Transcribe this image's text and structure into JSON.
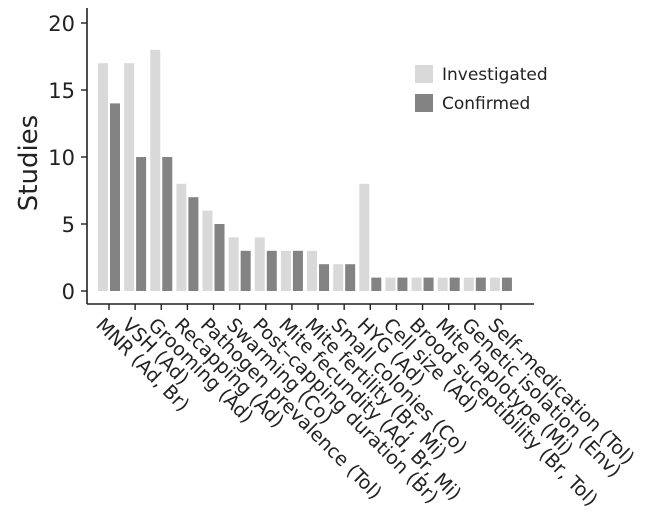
{
  "chart_data": {
    "type": "bar",
    "ylabel": "Studies",
    "xlabel": "",
    "ylim": [
      0,
      20
    ],
    "yticks": [
      0,
      5,
      10,
      15,
      20
    ],
    "grid": false,
    "legend_position": "top-right",
    "categories": [
      "MNR (Ad, Br)",
      "VSH (Ad)",
      "Grooming (Ad)",
      "Recapping (Ad)",
      "Pathogen prevalence (Tol)",
      "Swarming (Co)",
      "Post–capping duration (Br)",
      "Mite fecundity (Ad, Br, Mi)",
      "Mite fertility (Br, Mi)",
      "Small colonies (Co)",
      "HYG (Ad)",
      "Cell size (Ad)",
      "Brood suceptibility (Br, Tol)",
      "Mite haplotype (Mi)",
      "Genetic isolation (Env)",
      "Self–medication (Tol)"
    ],
    "series": [
      {
        "name": "Investigated",
        "color": "#d9d9d9",
        "values": [
          17,
          17,
          18,
          8,
          6,
          4,
          4,
          3,
          3,
          2,
          8,
          1,
          1,
          1,
          1,
          1
        ]
      },
      {
        "name": "Confirmed",
        "color": "#838383",
        "values": [
          14,
          10,
          10,
          7,
          5,
          3,
          3,
          3,
          2,
          2,
          1,
          1,
          1,
          1,
          1,
          1
        ]
      }
    ]
  }
}
